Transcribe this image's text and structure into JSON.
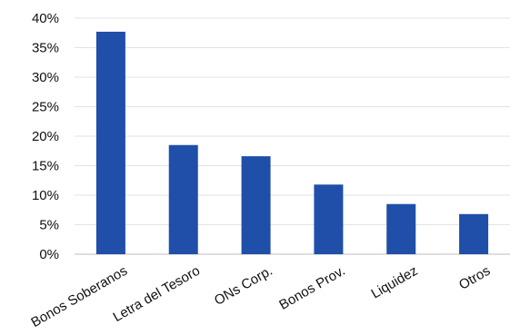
{
  "chart_data": {
    "type": "bar",
    "title": "",
    "xlabel": "",
    "ylabel": "",
    "categories": [
      "Bonos Soberanos",
      "Letra del Tesoro",
      "ONs Corp.",
      "Bonos Prov.",
      "Liquidez",
      "Otros"
    ],
    "values": [
      37.7,
      18.5,
      16.6,
      11.8,
      8.5,
      6.8
    ],
    "ylim": [
      0,
      40
    ],
    "yticks": [
      "0%",
      "5%",
      "10%",
      "15%",
      "20%",
      "25%",
      "30%",
      "35%",
      "40%"
    ],
    "ytick_values": [
      0,
      5,
      10,
      15,
      20,
      25,
      30,
      35,
      40
    ],
    "bar_color": "#1f4fa8",
    "grid": true,
    "legend": "none"
  }
}
